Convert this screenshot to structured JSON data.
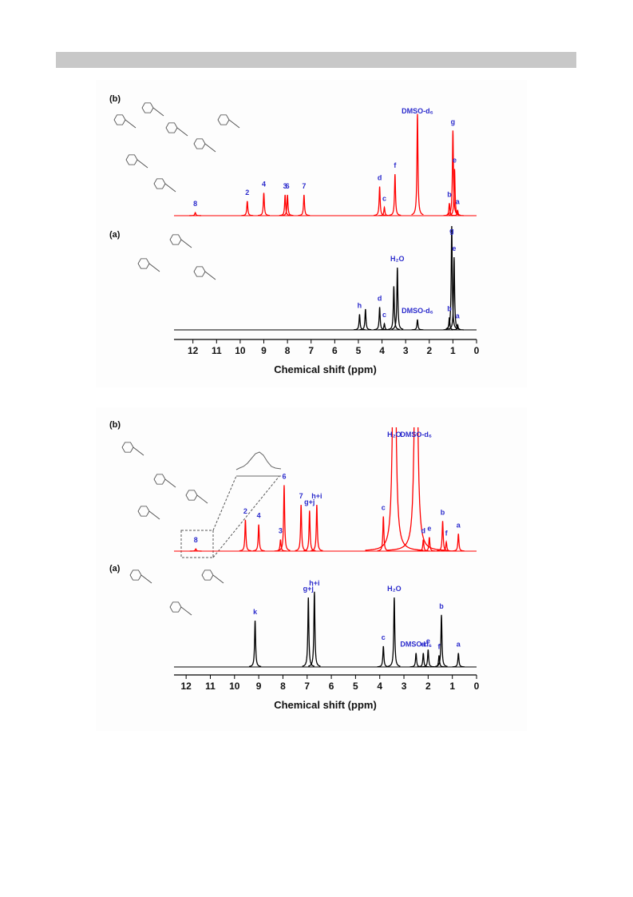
{
  "figures": [
    {
      "xlim": [
        12.8,
        0
      ],
      "xticks": [
        12,
        11,
        10,
        9,
        8,
        7,
        6,
        5,
        4,
        3,
        2,
        1,
        0
      ],
      "xlabel": "Chemical shift (ppm)",
      "panels": [
        {
          "label": "(b)",
          "color": "#ff0000",
          "peaks": [
            {
              "ppm": 11.9,
              "height": 0.03,
              "label": "8"
            },
            {
              "ppm": 9.7,
              "height": 0.14,
              "label": "2"
            },
            {
              "ppm": 9.0,
              "height": 0.22,
              "label": "4"
            },
            {
              "ppm": 8.1,
              "height": 0.2,
              "label": "3"
            },
            {
              "ppm": 8.0,
              "height": 0.2,
              "label": "6"
            },
            {
              "ppm": 7.3,
              "height": 0.2,
              "label": "7"
            },
            {
              "ppm": 4.1,
              "height": 0.28,
              "label": "d"
            },
            {
              "ppm": 3.9,
              "height": 0.08,
              "label": "c"
            },
            {
              "ppm": 3.45,
              "height": 0.4,
              "label": "f"
            },
            {
              "ppm": 2.5,
              "height": 0.98,
              "label": "DMSO-d₆"
            },
            {
              "ppm": 1.15,
              "height": 0.12,
              "label": "b"
            },
            {
              "ppm": 1.0,
              "height": 0.82,
              "label": "g"
            },
            {
              "ppm": 0.93,
              "height": 0.45,
              "label": "e"
            },
            {
              "ppm": 0.8,
              "height": 0.05,
              "label": "a"
            }
          ]
        },
        {
          "label": "(a)",
          "color": "#000000",
          "peaks": [
            {
              "ppm": 4.95,
              "height": 0.15,
              "label": "h"
            },
            {
              "ppm": 4.7,
              "height": 0.2
            },
            {
              "ppm": 4.1,
              "height": 0.22,
              "label": "d"
            },
            {
              "ppm": 3.9,
              "height": 0.06,
              "label": "c"
            },
            {
              "ppm": 3.5,
              "height": 0.42
            },
            {
              "ppm": 3.35,
              "height": 0.6,
              "label": "H₂O"
            },
            {
              "ppm": 2.5,
              "height": 0.1,
              "label": "DMSO-d₆"
            },
            {
              "ppm": 1.15,
              "height": 0.12,
              "label": "b"
            },
            {
              "ppm": 1.05,
              "height": 1.0,
              "label": "g"
            },
            {
              "ppm": 0.95,
              "height": 0.7,
              "label": "e"
            },
            {
              "ppm": 0.8,
              "height": 0.05,
              "label": "a"
            }
          ]
        }
      ]
    },
    {
      "xlim": [
        12.5,
        0
      ],
      "xticks": [
        12,
        11,
        10,
        9,
        8,
        7,
        6,
        5,
        4,
        3,
        2,
        1,
        0
      ],
      "xlabel": "Chemical shift (ppm)",
      "panels": [
        {
          "label": "(b)",
          "color": "#ff0000",
          "peaks": [
            {
              "ppm": 11.6,
              "height": 0.02,
              "label": "8"
            },
            {
              "ppm": 9.55,
              "height": 0.27,
              "label": "2"
            },
            {
              "ppm": 9.0,
              "height": 0.23,
              "label": "4"
            },
            {
              "ppm": 8.1,
              "height": 0.1,
              "label": "3"
            },
            {
              "ppm": 7.95,
              "height": 0.57,
              "label": "6"
            },
            {
              "ppm": 7.25,
              "height": 0.4,
              "label": "7"
            },
            {
              "ppm": 6.9,
              "height": 0.35,
              "label": "g+j"
            },
            {
              "ppm": 6.6,
              "height": 0.4,
              "label": "h+i"
            },
            {
              "ppm": 3.85,
              "height": 0.3,
              "label": "c"
            },
            {
              "ppm": 3.4,
              "height": 3,
              "label": "H₂O"
            },
            {
              "ppm": 2.5,
              "height": 3,
              "label": "DMSO-d₆"
            },
            {
              "ppm": 2.2,
              "height": 0.1,
              "label": "d"
            },
            {
              "ppm": 1.95,
              "height": 0.12,
              "label": "e"
            },
            {
              "ppm": 1.4,
              "height": 0.26,
              "label": "b"
            },
            {
              "ppm": 1.25,
              "height": 0.08,
              "label": "f"
            },
            {
              "ppm": 0.75,
              "height": 0.15,
              "label": "a"
            }
          ]
        },
        {
          "label": "(a)",
          "color": "#000000",
          "peaks": [
            {
              "ppm": 9.15,
              "height": 0.4,
              "label": "k"
            },
            {
              "ppm": 6.95,
              "height": 0.6,
              "label": "g+j"
            },
            {
              "ppm": 6.7,
              "height": 0.65,
              "label": "h+i"
            },
            {
              "ppm": 3.85,
              "height": 0.18,
              "label": "c"
            },
            {
              "ppm": 3.4,
              "height": 0.6,
              "label": "H₂O"
            },
            {
              "ppm": 2.5,
              "height": 0.12,
              "label": "DMSO-d₆"
            },
            {
              "ppm": 2.2,
              "height": 0.12,
              "label": "d"
            },
            {
              "ppm": 2.0,
              "height": 0.15,
              "label": "e"
            },
            {
              "ppm": 1.55,
              "height": 0.1,
              "label": "f"
            },
            {
              "ppm": 1.45,
              "height": 0.45,
              "label": "b"
            },
            {
              "ppm": 0.75,
              "height": 0.12,
              "label": "a"
            }
          ]
        }
      ]
    }
  ]
}
